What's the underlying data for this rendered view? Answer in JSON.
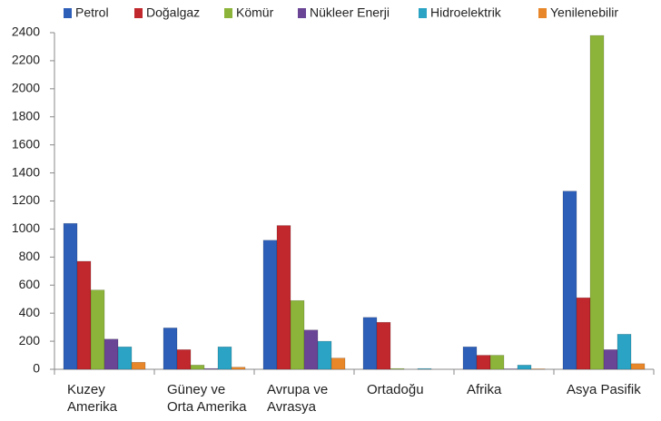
{
  "chart_data": {
    "type": "bar",
    "categories": [
      "Kuzey Amerika",
      "Güney ve Orta Amerika",
      "Avrupa ve Avrasya",
      "Ortadoğu",
      "Afrika",
      "Asya Pasifik"
    ],
    "series": [
      {
        "name": "Petrol",
        "color": "#2e5fb8",
        "values": [
          1040,
          295,
          920,
          370,
          160,
          1270
        ]
      },
      {
        "name": "Doğalgaz",
        "color": "#c0282d",
        "values": [
          770,
          140,
          1025,
          335,
          100,
          510
        ]
      },
      {
        "name": "Kömür",
        "color": "#8db43a",
        "values": [
          565,
          30,
          490,
          5,
          100,
          2380
        ]
      },
      {
        "name": "Nükleer Enerji",
        "color": "#6a4596",
        "values": [
          215,
          5,
          280,
          0,
          3,
          140
        ]
      },
      {
        "name": "Hidroelektrik",
        "color": "#2aa3c4",
        "values": [
          160,
          160,
          200,
          5,
          30,
          250
        ]
      },
      {
        "name": "Yenilenebilir",
        "color": "#e8862a",
        "values": [
          50,
          15,
          80,
          0,
          3,
          40
        ]
      }
    ],
    "ylim": [
      0,
      2400
    ],
    "yticks": [
      0,
      200,
      400,
      600,
      800,
      1000,
      1200,
      1400,
      1600,
      1800,
      2000,
      2200,
      2400
    ]
  }
}
